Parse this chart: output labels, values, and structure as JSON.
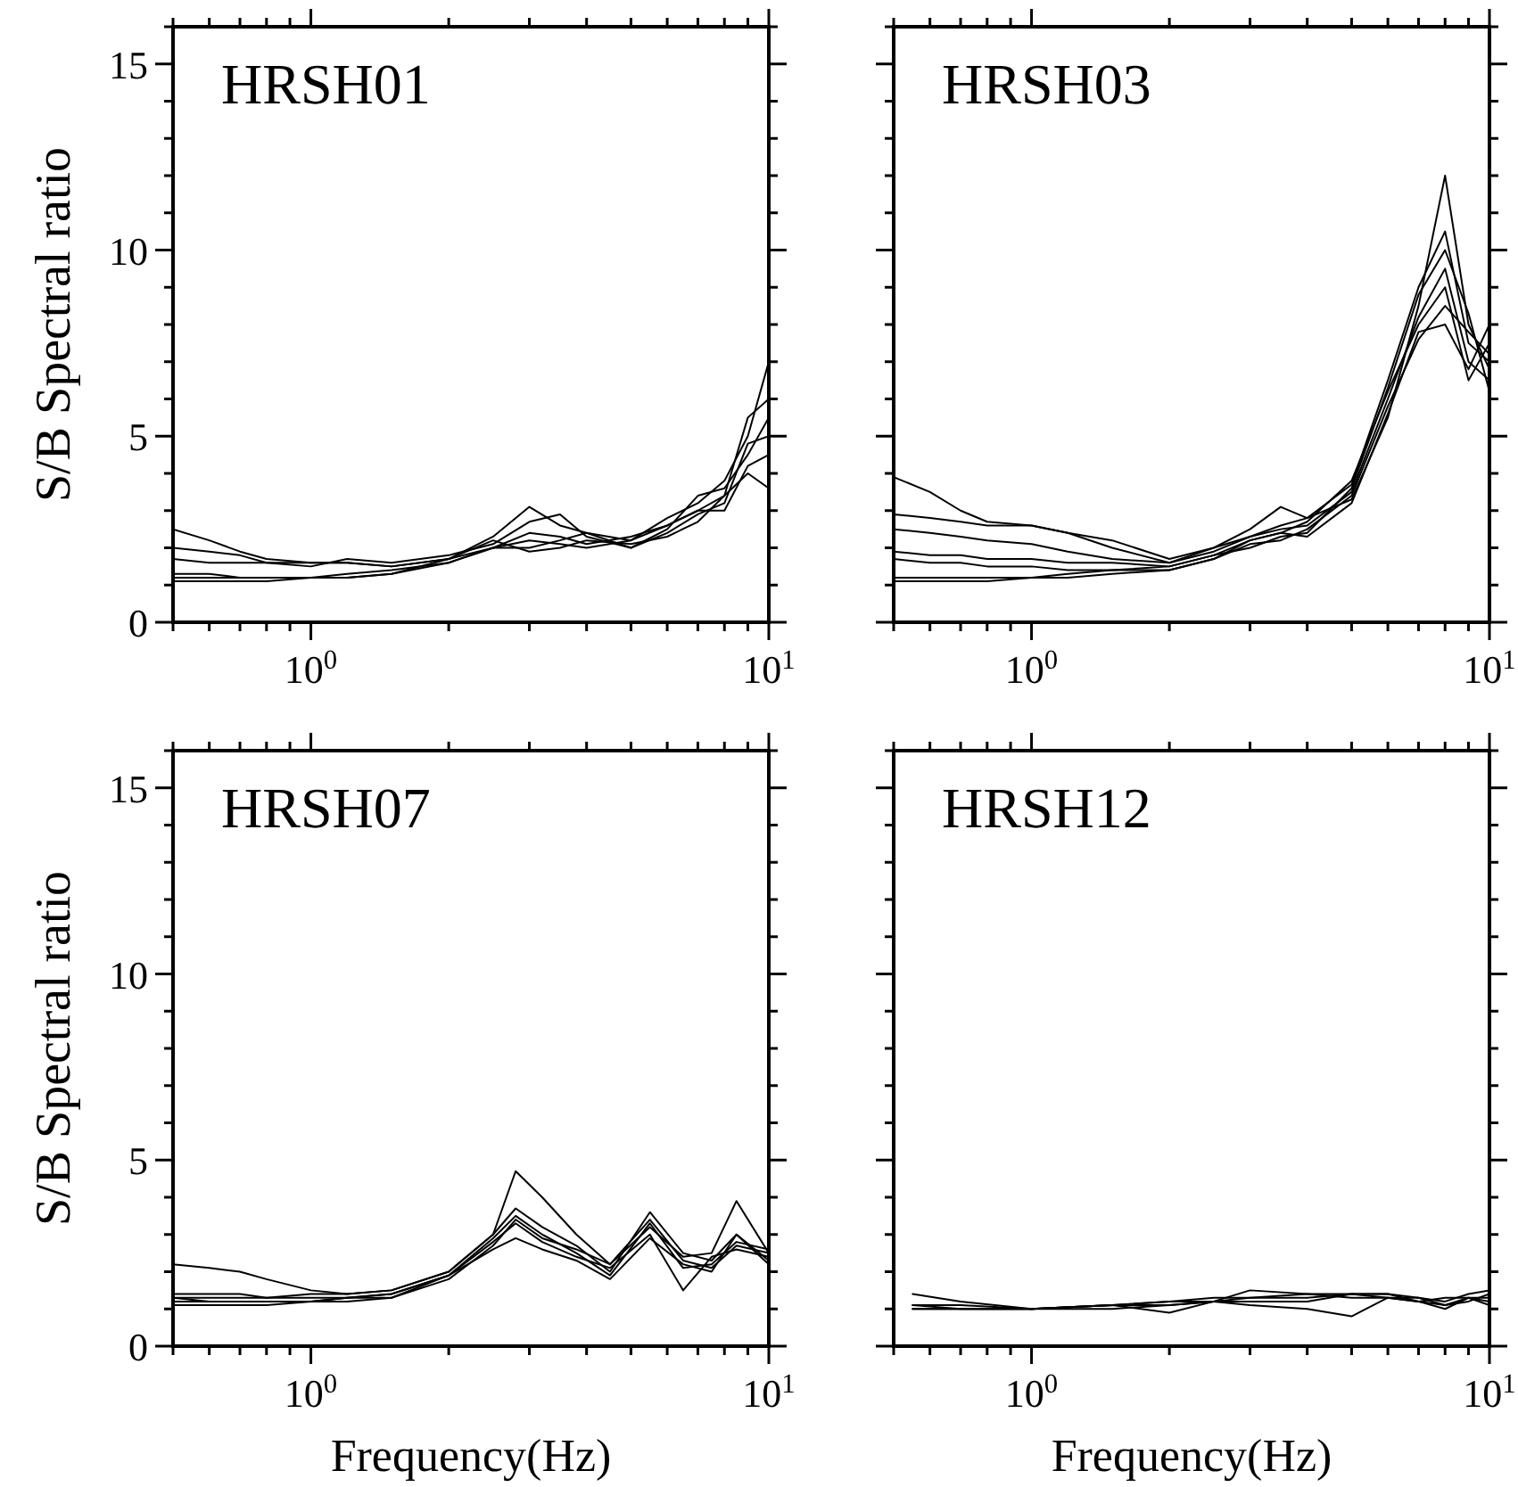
{
  "chart_data": [
    {
      "type": "line",
      "title": "HRSH01",
      "ylabel": "S/B Spectral ratio",
      "log": "x",
      "xlim": [
        0.5,
        10
      ],
      "ylim": [
        0,
        16
      ],
      "xticks": [
        {
          "value": 0.5,
          "label": null
        },
        {
          "value": 0.6,
          "label": null
        },
        {
          "value": 0.7,
          "label": null
        },
        {
          "value": 0.8,
          "label": null
        },
        {
          "value": 0.9,
          "label": null
        },
        {
          "value": 1,
          "label": "10$^{0}$"
        },
        {
          "value": 2,
          "label": null
        },
        {
          "value": 3,
          "label": null
        },
        {
          "value": 4,
          "label": null
        },
        {
          "value": 5,
          "label": null
        },
        {
          "value": 6,
          "label": null
        },
        {
          "value": 7,
          "label": null
        },
        {
          "value": 8,
          "label": null
        },
        {
          "value": 9,
          "label": null
        },
        {
          "value": 10,
          "label": "10$^{1}$"
        }
      ],
      "yticks": [
        0,
        {
          "value": 1,
          "label": null
        },
        {
          "value": 2,
          "label": null
        },
        {
          "value": 3,
          "label": null
        },
        {
          "value": 4,
          "label": null
        },
        5,
        {
          "value": 6,
          "label": null
        },
        {
          "value": 7,
          "label": null
        },
        {
          "value": 8,
          "label": null
        },
        {
          "value": 9,
          "label": null
        },
        10,
        {
          "value": 11,
          "label": null
        },
        {
          "value": 12,
          "label": null
        },
        {
          "value": 13,
          "label": null
        },
        {
          "value": 14,
          "label": null
        },
        15,
        {
          "value": 16,
          "label": null
        }
      ],
      "x": [
        0.5,
        0.6,
        0.7,
        0.8,
        1,
        1.2,
        1.5,
        2,
        2.5,
        3,
        3.5,
        4,
        5,
        6,
        7,
        8,
        9,
        10
      ],
      "series": [
        {
          "color": "#000000",
          "values": [
            2.5,
            2.2,
            1.9,
            1.7,
            1.6,
            1.6,
            1.5,
            1.7,
            2.3,
            3.1,
            2.6,
            2.4,
            2.2,
            2.8,
            3.2,
            3.8,
            5.0,
            7.0
          ]
        },
        {
          "color": "#000000",
          "values": [
            2.0,
            1.9,
            1.8,
            1.6,
            1.5,
            1.7,
            1.6,
            1.8,
            2.1,
            2.7,
            2.9,
            2.3,
            2.0,
            2.5,
            3.4,
            3.6,
            4.5,
            5.5
          ]
        },
        {
          "color": "#000000",
          "values": [
            1.7,
            1.6,
            1.6,
            1.6,
            1.6,
            1.6,
            1.5,
            1.7,
            2.0,
            2.4,
            2.3,
            2.1,
            2.3,
            2.6,
            3.0,
            3.4,
            4.0,
            3.6
          ]
        },
        {
          "color": "#000000",
          "values": [
            1.3,
            1.3,
            1.2,
            1.2,
            1.2,
            1.3,
            1.4,
            1.6,
            2.0,
            2.0,
            2.2,
            2.4,
            2.0,
            2.4,
            2.9,
            3.2,
            4.8,
            5.0
          ]
        },
        {
          "color": "#000000",
          "values": [
            1.2,
            1.2,
            1.2,
            1.2,
            1.2,
            1.2,
            1.3,
            1.7,
            2.2,
            1.9,
            2.0,
            2.2,
            2.1,
            2.3,
            2.7,
            3.4,
            5.5,
            6.0
          ]
        },
        {
          "color": "#000000",
          "values": [
            1.1,
            1.1,
            1.1,
            1.1,
            1.2,
            1.2,
            1.3,
            1.6,
            2.0,
            2.2,
            2.1,
            2.0,
            2.2,
            2.6,
            3.0,
            3.0,
            4.2,
            4.5
          ]
        }
      ]
    },
    {
      "type": "line",
      "title": "HRSH03",
      "log": "x",
      "tick_labels": "x",
      "xlim": [
        0.5,
        10
      ],
      "ylim": [
        0,
        16
      ],
      "xticks": [
        {
          "value": 0.5,
          "label": null
        },
        {
          "value": 0.6,
          "label": null
        },
        {
          "value": 0.7,
          "label": null
        },
        {
          "value": 0.8,
          "label": null
        },
        {
          "value": 0.9,
          "label": null
        },
        {
          "value": 1,
          "label": "10$^{0}$"
        },
        {
          "value": 2,
          "label": null
        },
        {
          "value": 3,
          "label": null
        },
        {
          "value": 4,
          "label": null
        },
        {
          "value": 5,
          "label": null
        },
        {
          "value": 6,
          "label": null
        },
        {
          "value": 7,
          "label": null
        },
        {
          "value": 8,
          "label": null
        },
        {
          "value": 9,
          "label": null
        },
        {
          "value": 10,
          "label": "10$^{1}$"
        }
      ],
      "yticks": [
        0,
        {
          "value": 1,
          "label": null
        },
        {
          "value": 2,
          "label": null
        },
        {
          "value": 3,
          "label": null
        },
        {
          "value": 4,
          "label": null
        },
        5,
        {
          "value": 6,
          "label": null
        },
        {
          "value": 7,
          "label": null
        },
        {
          "value": 8,
          "label": null
        },
        {
          "value": 9,
          "label": null
        },
        10,
        {
          "value": 11,
          "label": null
        },
        {
          "value": 12,
          "label": null
        },
        {
          "value": 13,
          "label": null
        },
        {
          "value": 14,
          "label": null
        },
        15,
        {
          "value": 16,
          "label": null
        }
      ],
      "x": [
        0.5,
        0.6,
        0.7,
        0.8,
        1,
        1.2,
        1.5,
        2,
        2.5,
        3,
        3.5,
        4,
        5,
        6,
        7,
        8,
        9,
        10
      ],
      "series": [
        {
          "color": "#000000",
          "values": [
            3.9,
            3.5,
            3.0,
            2.7,
            2.6,
            2.4,
            2.2,
            1.7,
            2.0,
            2.5,
            3.1,
            2.8,
            3.3,
            5.5,
            8.5,
            12.0,
            8.0,
            6.8
          ]
        },
        {
          "color": "#000000",
          "values": [
            2.9,
            2.8,
            2.7,
            2.6,
            2.6,
            2.4,
            2.0,
            1.6,
            2.0,
            2.3,
            2.6,
            2.8,
            3.7,
            6.5,
            9.0,
            10.5,
            7.5,
            7.0
          ]
        },
        {
          "color": "#000000",
          "values": [
            2.5,
            2.4,
            2.3,
            2.2,
            2.1,
            1.9,
            1.7,
            1.6,
            1.9,
            2.3,
            2.5,
            2.6,
            3.5,
            6.0,
            8.2,
            9.5,
            7.0,
            6.5
          ]
        },
        {
          "color": "#000000",
          "values": [
            1.9,
            1.8,
            1.8,
            1.7,
            1.7,
            1.6,
            1.6,
            1.5,
            1.8,
            2.2,
            2.4,
            2.7,
            3.8,
            6.2,
            8.0,
            9.0,
            6.5,
            7.5
          ]
        },
        {
          "color": "#000000",
          "values": [
            1.7,
            1.6,
            1.6,
            1.5,
            1.5,
            1.4,
            1.4,
            1.4,
            1.7,
            2.1,
            2.2,
            2.5,
            3.4,
            5.8,
            7.6,
            8.5,
            7.8,
            7.2
          ]
        },
        {
          "color": "#000000",
          "values": [
            1.2,
            1.2,
            1.2,
            1.2,
            1.2,
            1.3,
            1.4,
            1.5,
            1.8,
            2.0,
            2.3,
            2.4,
            3.6,
            6.3,
            8.8,
            10.0,
            8.3,
            6.2
          ]
        },
        {
          "color": "#000000",
          "values": [
            1.1,
            1.1,
            1.1,
            1.1,
            1.2,
            1.2,
            1.3,
            1.4,
            1.7,
            2.2,
            2.4,
            2.3,
            3.2,
            5.6,
            7.8,
            8.0,
            6.8,
            8.0
          ]
        }
      ]
    },
    {
      "type": "line",
      "title": "HRSH07",
      "xlabel": "Frequency(Hz)",
      "ylabel": "S/B Spectral ratio",
      "log": "x",
      "xlim": [
        0.5,
        10
      ],
      "ylim": [
        0,
        16
      ],
      "xticks": [
        {
          "value": 0.5,
          "label": null
        },
        {
          "value": 0.6,
          "label": null
        },
        {
          "value": 0.7,
          "label": null
        },
        {
          "value": 0.8,
          "label": null
        },
        {
          "value": 0.9,
          "label": null
        },
        {
          "value": 1,
          "label": "10$^{0}$"
        },
        {
          "value": 2,
          "label": null
        },
        {
          "value": 3,
          "label": null
        },
        {
          "value": 4,
          "label": null
        },
        {
          "value": 5,
          "label": null
        },
        {
          "value": 6,
          "label": null
        },
        {
          "value": 7,
          "label": null
        },
        {
          "value": 8,
          "label": null
        },
        {
          "value": 9,
          "label": null
        },
        {
          "value": 10,
          "label": "10$^{1}$"
        }
      ],
      "yticks": [
        0,
        {
          "value": 1,
          "label": null
        },
        {
          "value": 2,
          "label": null
        },
        {
          "value": 3,
          "label": null
        },
        {
          "value": 4,
          "label": null
        },
        5,
        {
          "value": 6,
          "label": null
        },
        {
          "value": 7,
          "label": null
        },
        {
          "value": 8,
          "label": null
        },
        {
          "value": 9,
          "label": null
        },
        10,
        {
          "value": 11,
          "label": null
        },
        {
          "value": 12,
          "label": null
        },
        {
          "value": 13,
          "label": null
        },
        {
          "value": 14,
          "label": null
        },
        15,
        {
          "value": 16,
          "label": null
        }
      ],
      "x": [
        0.5,
        0.6,
        0.7,
        0.8,
        1,
        1.2,
        1.5,
        2,
        2.5,
        2.8,
        3.2,
        3.8,
        4.5,
        5.5,
        6.5,
        7.5,
        8.5,
        10
      ],
      "series": [
        {
          "color": "#000000",
          "values": [
            2.2,
            2.1,
            2.0,
            1.8,
            1.5,
            1.4,
            1.5,
            2.0,
            3.0,
            4.7,
            4.0,
            3.0,
            2.2,
            3.2,
            2.4,
            2.5,
            3.9,
            2.5
          ]
        },
        {
          "color": "#000000",
          "values": [
            1.4,
            1.4,
            1.4,
            1.3,
            1.4,
            1.4,
            1.5,
            2.0,
            3.0,
            3.7,
            3.2,
            2.7,
            2.0,
            3.6,
            2.5,
            2.3,
            3.0,
            2.3
          ]
        },
        {
          "color": "#000000",
          "values": [
            1.3,
            1.3,
            1.3,
            1.3,
            1.3,
            1.3,
            1.4,
            1.9,
            2.9,
            3.5,
            3.0,
            2.5,
            1.9,
            3.3,
            2.1,
            2.2,
            2.8,
            2.6
          ]
        },
        {
          "color": "#000000",
          "values": [
            1.2,
            1.2,
            1.2,
            1.2,
            1.2,
            1.3,
            1.4,
            1.9,
            2.8,
            3.3,
            2.8,
            2.4,
            2.1,
            3.0,
            1.5,
            2.4,
            2.6,
            2.4
          ]
        },
        {
          "color": "#000000",
          "values": [
            1.1,
            1.1,
            1.1,
            1.1,
            1.2,
            1.3,
            1.3,
            1.9,
            2.6,
            2.9,
            2.6,
            2.3,
            1.8,
            2.9,
            2.2,
            2.0,
            3.0,
            2.2
          ]
        },
        {
          "color": "#000000",
          "values": [
            1.3,
            1.2,
            1.2,
            1.2,
            1.2,
            1.2,
            1.3,
            1.8,
            2.7,
            3.4,
            2.9,
            2.6,
            2.2,
            3.4,
            2.3,
            2.1,
            2.7,
            2.5
          ]
        }
      ]
    },
    {
      "type": "line",
      "title": "HRSH12",
      "xlabel": "Frequency(Hz)",
      "log": "x",
      "tick_labels": "x",
      "xlim": [
        0.5,
        10
      ],
      "ylim": [
        0,
        16
      ],
      "xticks": [
        {
          "value": 0.5,
          "label": null
        },
        {
          "value": 0.6,
          "label": null
        },
        {
          "value": 0.7,
          "label": null
        },
        {
          "value": 0.8,
          "label": null
        },
        {
          "value": 0.9,
          "label": null
        },
        {
          "value": 1,
          "label": "10$^{0}$"
        },
        {
          "value": 2,
          "label": null
        },
        {
          "value": 3,
          "label": null
        },
        {
          "value": 4,
          "label": null
        },
        {
          "value": 5,
          "label": null
        },
        {
          "value": 6,
          "label": null
        },
        {
          "value": 7,
          "label": null
        },
        {
          "value": 8,
          "label": null
        },
        {
          "value": 9,
          "label": null
        },
        {
          "value": 10,
          "label": "10$^{1}$"
        }
      ],
      "yticks": [
        0,
        {
          "value": 1,
          "label": null
        },
        {
          "value": 2,
          "label": null
        },
        {
          "value": 3,
          "label": null
        },
        {
          "value": 4,
          "label": null
        },
        5,
        {
          "value": 6,
          "label": null
        },
        {
          "value": 7,
          "label": null
        },
        {
          "value": 8,
          "label": null
        },
        {
          "value": 9,
          "label": null
        },
        10,
        {
          "value": 11,
          "label": null
        },
        {
          "value": 12,
          "label": null
        },
        {
          "value": 13,
          "label": null
        },
        {
          "value": 14,
          "label": null
        },
        15,
        {
          "value": 16,
          "label": null
        }
      ],
      "x": [
        0.55,
        0.7,
        1,
        1.5,
        2,
        2.5,
        3,
        4,
        5,
        6,
        7,
        8,
        9,
        10
      ],
      "series": [
        {
          "color": "#000000",
          "values": [
            1.4,
            1.2,
            1.0,
            1.1,
            1.2,
            1.3,
            1.3,
            1.4,
            1.4,
            1.3,
            1.2,
            1.0,
            1.3,
            1.3
          ]
        },
        {
          "color": "#000000",
          "values": [
            1.1,
            1.0,
            1.0,
            1.1,
            0.9,
            1.2,
            1.5,
            1.4,
            1.3,
            1.3,
            1.3,
            1.2,
            1.4,
            1.5
          ]
        },
        {
          "color": "#000000",
          "values": [
            1.0,
            1.0,
            1.0,
            1.1,
            1.2,
            1.2,
            1.1,
            1.0,
            0.8,
            1.3,
            1.2,
            1.3,
            1.3,
            1.2
          ]
        },
        {
          "color": "#000000",
          "values": [
            1.1,
            1.1,
            1.0,
            1.0,
            1.1,
            1.2,
            1.3,
            1.3,
            1.4,
            1.4,
            1.3,
            1.1,
            1.2,
            1.4
          ]
        },
        {
          "color": "#000000",
          "values": [
            1.0,
            1.0,
            1.0,
            1.1,
            1.1,
            1.2,
            1.2,
            1.2,
            1.4,
            1.4,
            1.2,
            1.1,
            1.3,
            1.1
          ]
        }
      ]
    }
  ]
}
